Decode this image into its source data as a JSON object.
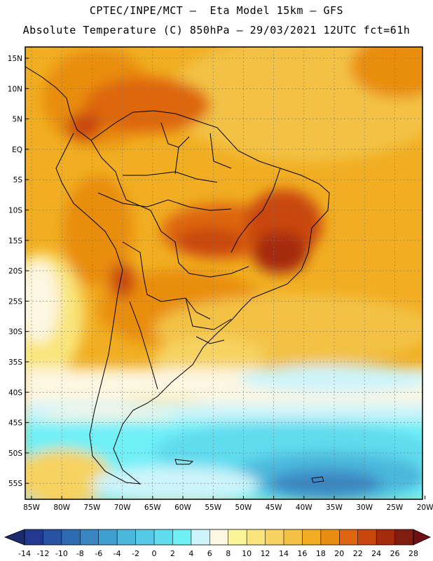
{
  "header": {
    "line1": "CPTEC/INPE/MCT –  Eta Model 15km – GFS",
    "line2": "Absolute Temperature (C) 850hPa – 29/03/2021 12UTC fct=61h"
  },
  "map": {
    "lat_labels": [
      "15N",
      "10N",
      "5N",
      "EQ",
      "5S",
      "10S",
      "15S",
      "20S",
      "25S",
      "30S",
      "35S",
      "40S",
      "45S",
      "50S",
      "55S"
    ],
    "lon_labels": [
      "85W",
      "80W",
      "75W",
      "70W",
      "65W",
      "60W",
      "55W",
      "50W",
      "45W",
      "40W",
      "35W",
      "30W",
      "25W",
      "20W"
    ],
    "region": "South America"
  },
  "colorbar": {
    "labels": [
      "-14",
      "-12",
      "-10",
      "-8",
      "-6",
      "-4",
      "-2",
      "0",
      "2",
      "4",
      "6",
      "8",
      "10",
      "12",
      "14",
      "16",
      "18",
      "20",
      "22",
      "24",
      "26",
      "28"
    ],
    "colors": [
      "#22398f",
      "#2a52a3",
      "#2f6bb3",
      "#3a86c2",
      "#3f9fcf",
      "#4bb7db",
      "#55c9e6",
      "#5fdcee",
      "#6ff0f7",
      "#cdf4fb",
      "#fdf6e1",
      "#fbf59a",
      "#f9e57c",
      "#f6d360",
      "#f3c245",
      "#f1ae22",
      "#e98d10",
      "#de6610",
      "#c9470d",
      "#a62a0d",
      "#7f1e10"
    ],
    "low_arrow_color": "#1c2a6e",
    "high_arrow_color": "#6e0f14"
  }
}
